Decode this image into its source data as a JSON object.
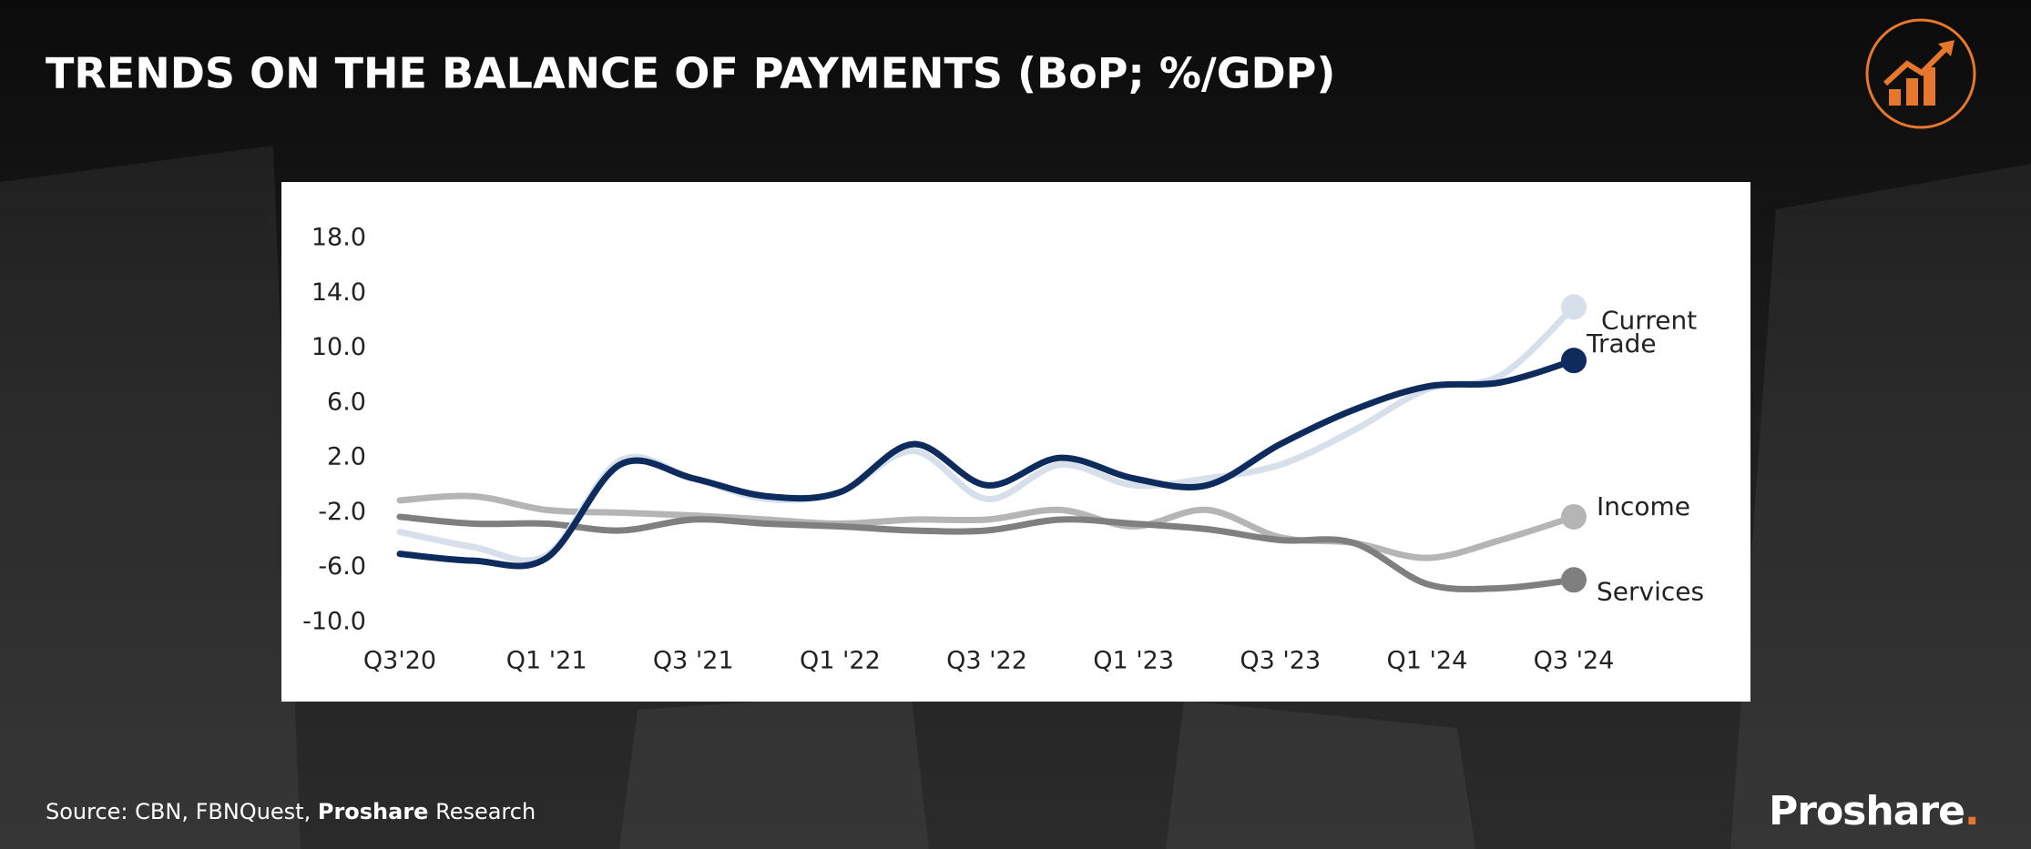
{
  "chart_data": {
    "type": "line",
    "title": "TRENDS ON THE BALANCE OF PAYMENTS (BoP; %/GDP)",
    "categories": [
      "Q3'20",
      null,
      "Q1 '21",
      null,
      "Q3 '21",
      null,
      "Q1 '22",
      null,
      "Q3 '22",
      null,
      "Q1 '23",
      null,
      "Q3 '23",
      null,
      "Q1 '24",
      null,
      "Q3 '24"
    ],
    "series": [
      {
        "name": "Current",
        "color": "#d6dfea",
        "values": [
          -3.4,
          -4.5,
          -5.1,
          1.8,
          0.5,
          -1.0,
          -0.5,
          2.5,
          -1.0,
          1.5,
          0,
          0.5,
          1.5,
          4.0,
          7.0,
          8.0,
          13.0
        ]
      },
      {
        "name": "Trade",
        "color": "#0d2b5c",
        "values": [
          -5.0,
          -5.5,
          -5.3,
          1.5,
          0.5,
          -0.8,
          -0.5,
          3.0,
          0,
          2.0,
          0.5,
          0,
          3.0,
          5.5,
          7.2,
          7.5,
          9.1
        ]
      },
      {
        "name": "Income",
        "color": "#b5b5b5",
        "values": [
          -1.1,
          -0.8,
          -1.8,
          -2.0,
          -2.2,
          -2.5,
          -2.8,
          -2.5,
          -2.5,
          -1.8,
          -3.0,
          -1.8,
          -3.8,
          -4.2,
          -5.3,
          -4.0,
          -2.3
        ]
      },
      {
        "name": "Services",
        "color": "#7f7f7f",
        "values": [
          -2.3,
          -2.8,
          -2.8,
          -3.3,
          -2.5,
          -2.8,
          -3.0,
          -3.3,
          -3.3,
          -2.5,
          -2.8,
          -3.2,
          -4.0,
          -4.2,
          -7.2,
          -7.5,
          -6.9
        ]
      }
    ],
    "ylim": [
      -10,
      18
    ],
    "yticks": [
      {
        "value": -10,
        "label": "-10.0"
      },
      {
        "value": -6,
        "label": "-6.0"
      },
      {
        "value": -2,
        "label": "-2.0"
      },
      {
        "value": 2,
        "label": "2.0"
      },
      {
        "value": 6,
        "label": "6.0"
      },
      {
        "value": 10,
        "label": "10.0"
      },
      {
        "value": 14,
        "label": "14.0"
      },
      {
        "value": 18,
        "label": "18.0"
      }
    ],
    "grid": false,
    "source": [
      "Source: CBN, FBNQuest,",
      "Proshare",
      "Research"
    ],
    "brand": [
      "Proshare",
      "."
    ]
  }
}
